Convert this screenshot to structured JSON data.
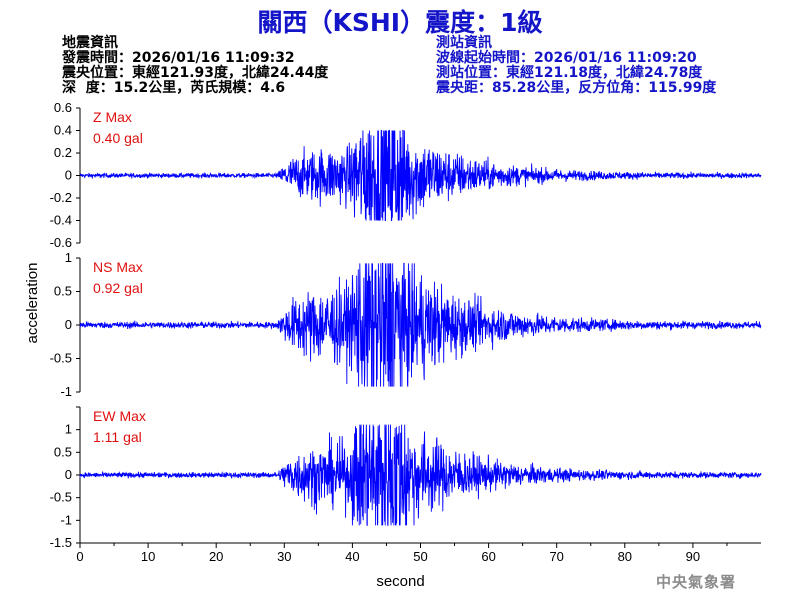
{
  "title": "關西（KSHI）震度：1級",
  "quake_info": {
    "heading": "地震資訊",
    "time": "發震時間：2026/01/16 11:09:32",
    "epicenter": "震央位置：東經121.93度，北緯24.44度",
    "depth_mag": "深  度：15.2公里，芮氏規模：4.6"
  },
  "station_info": {
    "heading": "測站資訊",
    "wave_start": "波線起始時間：2026/01/16 11:09:20",
    "location": "測站位置：東經121.18度，北緯24.78度",
    "distance": "震央距：85.28公里，反方位角：115.99度"
  },
  "footer": "中央氣象署",
  "chart_data": {
    "type": "line",
    "xlabel": "second",
    "ylabel": "acceleration",
    "xlim": [
      0,
      100
    ],
    "x_ticks": [
      0,
      10,
      20,
      30,
      40,
      50,
      60,
      70,
      80,
      90
    ],
    "line_color": "#0000ff",
    "grid": false,
    "panels": [
      {
        "name": "Z",
        "max_label": "Z Max",
        "max_value": "0.40 gal",
        "ylim": [
          -0.6,
          0.6
        ],
        "y_ticks": [
          0.6,
          0.4,
          0.2,
          0,
          -0.2,
          -0.4,
          -0.6
        ],
        "y_tick_labels": [
          "0.6",
          "0.4",
          "0.2",
          "0",
          "-0.2",
          "-0.4",
          "-0.6"
        ],
        "peak": 0.4
      },
      {
        "name": "NS",
        "max_label": "NS Max",
        "max_value": "0.92 gal",
        "ylim": [
          -1,
          1
        ],
        "y_ticks": [
          1,
          0.5,
          0,
          -0.5,
          -1
        ],
        "y_tick_labels": [
          "1",
          "0.5",
          "0",
          "-0.5",
          "-1"
        ],
        "peak": 0.92
      },
      {
        "name": "EW",
        "max_label": "EW Max",
        "max_value": "1.11 gal",
        "ylim": [
          -1.5,
          1.5
        ],
        "y_ticks": [
          1.5,
          1,
          0.5,
          0,
          -0.5,
          -1,
          -1.5
        ],
        "y_tick_labels": [
          "",
          "1",
          "0.5",
          "0",
          "-0.5",
          "-1",
          "-1.5"
        ],
        "peak": 1.11
      }
    ],
    "envelope": {
      "note_free": true,
      "onset_s": 29,
      "s_arrival_s": 40,
      "peak_s": 45,
      "coda_end_s": 100
    }
  }
}
